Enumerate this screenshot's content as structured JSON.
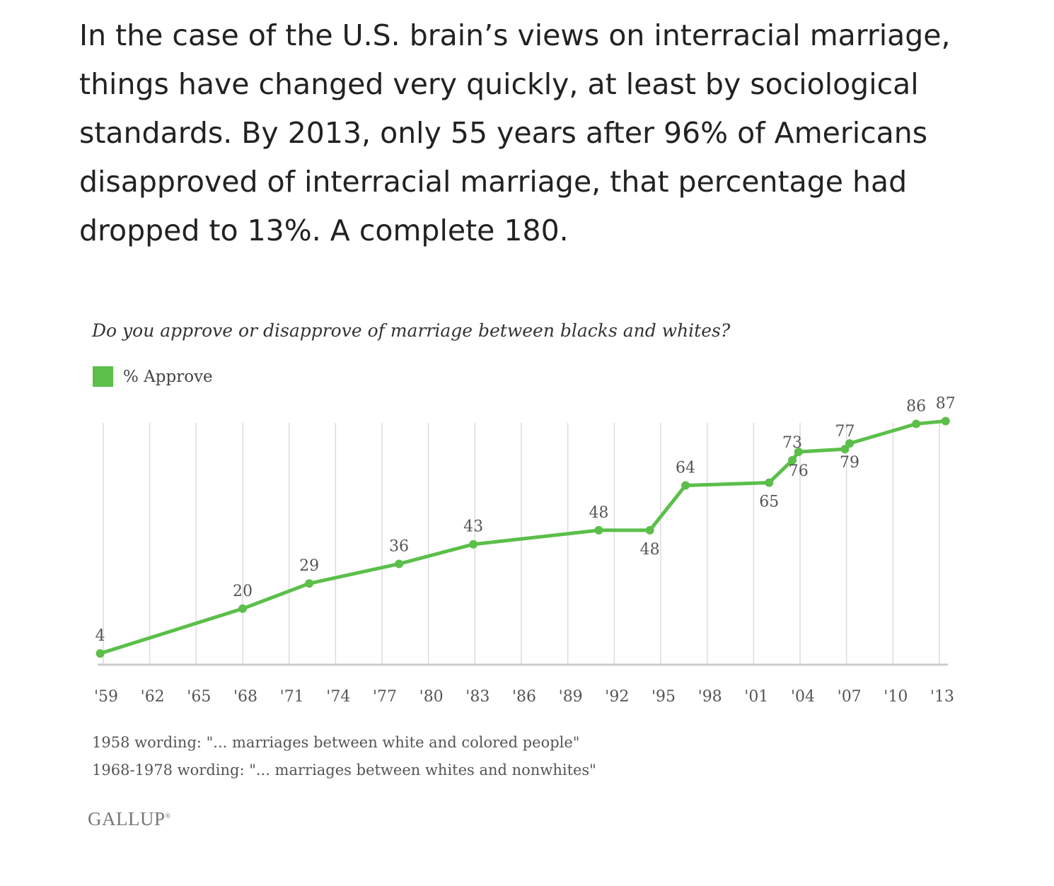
{
  "article": {
    "paragraph": "In the case of the U.S. brain’s views on interracial marriage, things have changed very quickly, at least by sociological standards. By 2013, only 55 years after 96% of Americans disapproved of interracial marriage, that percentage had dropped to 13%. A complete 180."
  },
  "colors": {
    "series": "#5bbf4a",
    "gridline": "#dcdcdc",
    "baseline": "#cccccc",
    "text": "#222222"
  },
  "chart_data": {
    "type": "line",
    "title": "Do you approve or disapprove of marriage between blacks and whites?",
    "xlabel": "",
    "ylabel": "",
    "legend_position": "top-left",
    "grid": "vertical",
    "xlim": [
      1959,
      2013
    ],
    "ylim": [
      0,
      100
    ],
    "x_tick_labels": [
      "'59",
      "'62",
      "'65",
      "'68",
      "'71",
      "'74",
      "'77",
      "'80",
      "'83",
      "'86",
      "'89",
      "'92",
      "'95",
      "'98",
      "'01",
      "'04",
      "'07",
      "'10",
      "'13"
    ],
    "series": [
      {
        "name": "% Approve",
        "x": [
          1958.8,
          1968.0,
          1972.3,
          1978.1,
          1982.9,
          1991.0,
          1994.3,
          1996.6,
          2002.0,
          2003.5,
          2003.9,
          2006.9,
          2007.2,
          2011.5,
          2013.4
        ],
        "values": [
          4,
          20,
          29,
          36,
          43,
          48,
          48,
          64,
          65,
          73,
          76,
          77,
          79,
          86,
          87
        ],
        "labels": [
          "4",
          "20",
          "29",
          "36",
          "43",
          "48",
          "48",
          "64",
          "65",
          "73",
          "76",
          "77",
          "79",
          "86",
          "87"
        ],
        "label_side": [
          "above",
          "above",
          "above",
          "above",
          "above",
          "above",
          "below",
          "above",
          "below",
          "above",
          "below",
          "above",
          "below",
          "above",
          "above"
        ]
      }
    ]
  },
  "notes": {
    "line1": "1958 wording: \"... marriages between white and colored people\"",
    "line2": "1968-1978 wording: \"... marriages between whites and nonwhites\""
  },
  "brand": {
    "name": "GALLUP",
    "mark": "®"
  }
}
